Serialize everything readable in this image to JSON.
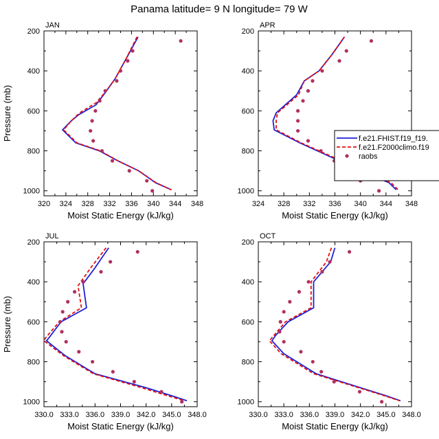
{
  "title": "Panama  latitude= 9 N longitude= 79 W",
  "colors": {
    "model1": "#1f1fd6",
    "model2": "#e01010",
    "raobs": "#b03060"
  },
  "legend": {
    "placement": "right of APR panel, overlapping figure edge",
    "entries": [
      "f.e21.FHIST.f19_f19.",
      "f.e21.F2000climo.f19",
      "raobs"
    ]
  },
  "chart_data": [
    {
      "type": "line",
      "panel_label": "JAN",
      "xlabel": "Moist Static Energy (kJ/kg)",
      "ylabel": "Pressure (mb)",
      "xlim": [
        320,
        348
      ],
      "xticks": [
        320,
        324,
        328,
        332,
        336,
        340,
        344,
        348
      ],
      "xdecimals": 0,
      "ylim": [
        200,
        1025
      ],
      "yticks": [
        200,
        400,
        600,
        800,
        1000
      ],
      "y_inverted": true,
      "pressure": [
        250,
        300,
        350,
        400,
        450,
        500,
        550,
        600,
        650,
        700,
        750,
        800,
        850,
        900,
        950,
        1000
      ],
      "series": [
        {
          "name": "f.e21.FHIST.f19_f19.",
          "style": "solid",
          "points": [
            [
              337.2,
              230
            ],
            [
              335.0,
              340
            ],
            [
              333.0,
              440
            ],
            [
              330.9,
              520
            ],
            [
              329.5,
              570
            ],
            [
              326.3,
              620
            ],
            [
              325.0,
              650
            ],
            [
              323.4,
              695
            ],
            [
              325.8,
              760
            ],
            [
              330.1,
              800
            ],
            [
              333.5,
              850
            ],
            [
              337.3,
              900
            ],
            [
              340.4,
              960
            ],
            [
              343.3,
              995
            ]
          ]
        },
        {
          "name": "f.e21.F2000climo.f19",
          "style": "dashed",
          "points": [
            [
              337.0,
              230
            ],
            [
              335.0,
              340
            ],
            [
              333.0,
              440
            ],
            [
              331.1,
              510
            ],
            [
              329.5,
              560
            ],
            [
              326.5,
              610
            ],
            [
              325.0,
              650
            ],
            [
              323.6,
              695
            ],
            [
              326.0,
              760
            ],
            [
              330.3,
              800
            ],
            [
              333.5,
              850
            ],
            [
              337.3,
              900
            ],
            [
              340.5,
              960
            ],
            [
              343.3,
              995
            ]
          ]
        },
        {
          "name": "raobs",
          "style": "markers",
          "points": [
            [
              345.0,
              250
            ],
            [
              336.2,
              300
            ],
            [
              335.3,
              350
            ],
            [
              334.0,
              400
            ],
            [
              333.3,
              450
            ],
            [
              331.2,
              500
            ],
            [
              330.2,
              550
            ],
            [
              329.4,
              600
            ],
            [
              328.8,
              650
            ],
            [
              328.5,
              700
            ],
            [
              329.0,
              750
            ],
            [
              330.6,
              800
            ],
            [
              332.5,
              850
            ],
            [
              335.6,
              900
            ],
            [
              338.8,
              950
            ],
            [
              339.8,
              1000
            ]
          ]
        }
      ]
    },
    {
      "type": "line",
      "panel_label": "APR",
      "xlabel": "Moist Static Energy (kJ/kg)",
      "ylabel": "Pressure (mb)",
      "xlim": [
        324,
        348
      ],
      "xticks": [
        324,
        328,
        332,
        336,
        340,
        344,
        348
      ],
      "xdecimals": 0,
      "ylim": [
        200,
        1025
      ],
      "yticks": [
        200,
        400,
        600,
        800,
        1000
      ],
      "y_inverted": true,
      "pressure": [
        250,
        300,
        350,
        400,
        450,
        500,
        550,
        600,
        650,
        700,
        750,
        800,
        850,
        900,
        950,
        1000
      ],
      "series": [
        {
          "name": "f.e21.FHIST.f19_f19.",
          "style": "solid",
          "points": [
            [
              337.5,
              230
            ],
            [
              335.5,
              320
            ],
            [
              333.5,
              400
            ],
            [
              331.2,
              450
            ],
            [
              330.0,
              520
            ],
            [
              326.8,
              610
            ],
            [
              326.3,
              650
            ],
            [
              326.5,
              695
            ],
            [
              330.5,
              760
            ],
            [
              336.0,
              840
            ],
            [
              341.5,
              920
            ],
            [
              344.5,
              960
            ],
            [
              345.6,
              995
            ]
          ]
        },
        {
          "name": "f.e21.F2000climo.f19",
          "style": "dashed",
          "points": [
            [
              337.5,
              230
            ],
            [
              335.5,
              320
            ],
            [
              333.5,
              400
            ],
            [
              331.2,
              450
            ],
            [
              330.3,
              520
            ],
            [
              327.0,
              610
            ],
            [
              326.8,
              650
            ],
            [
              326.8,
              695
            ],
            [
              330.7,
              760
            ],
            [
              336.3,
              840
            ],
            [
              341.8,
              920
            ],
            [
              344.8,
              960
            ],
            [
              345.9,
              995
            ]
          ]
        },
        {
          "name": "raobs",
          "style": "markers",
          "points": [
            [
              341.7,
              250
            ],
            [
              337.8,
              300
            ],
            [
              336.7,
              350
            ],
            [
              334.0,
              400
            ],
            [
              332.5,
              450
            ],
            [
              331.8,
              500
            ],
            [
              331.0,
              550
            ],
            [
              330.2,
              600
            ],
            [
              330.2,
              650
            ],
            [
              330.2,
              700
            ],
            [
              331.8,
              750
            ],
            [
              333.8,
              800
            ],
            [
              335.9,
              850
            ],
            [
              337.7,
              900
            ],
            [
              340.0,
              950
            ],
            [
              342.9,
              1000
            ]
          ]
        }
      ]
    },
    {
      "type": "line",
      "panel_label": "JUL",
      "xlabel": "Moist Static Energy (kJ/kg)",
      "ylabel": "Pressure (mb)",
      "xlim": [
        330,
        348
      ],
      "xticks": [
        330,
        333,
        336,
        339,
        342,
        345,
        348
      ],
      "xdecimals": 1,
      "ylim": [
        200,
        1025
      ],
      "yticks": [
        200,
        400,
        600,
        800,
        1000
      ],
      "y_inverted": true,
      "pressure": [
        250,
        300,
        350,
        400,
        450,
        500,
        550,
        600,
        650,
        700,
        750,
        800,
        850,
        900,
        950,
        1000
      ],
      "series": [
        {
          "name": "f.e21.FHIST.f19_f19.",
          "style": "solid",
          "points": [
            [
              337.6,
              230
            ],
            [
              336.0,
              330
            ],
            [
              334.6,
              410
            ],
            [
              335.0,
              530
            ],
            [
              332.0,
              600
            ],
            [
              330.6,
              680
            ],
            [
              330.3,
              695
            ],
            [
              332.5,
              770
            ],
            [
              336.0,
              860
            ],
            [
              342.0,
              930
            ],
            [
              345.0,
              970
            ],
            [
              346.8,
              995
            ]
          ]
        },
        {
          "name": "f.e21.F2000climo.f19",
          "style": "dashed",
          "points": [
            [
              337.3,
              230
            ],
            [
              335.5,
              330
            ],
            [
              334.0,
              420
            ],
            [
              334.4,
              530
            ],
            [
              331.8,
              600
            ],
            [
              330.2,
              680
            ],
            [
              330.0,
              695
            ],
            [
              332.3,
              770
            ],
            [
              335.8,
              860
            ],
            [
              341.5,
              930
            ],
            [
              344.5,
              970
            ],
            [
              346.5,
              995
            ]
          ]
        },
        {
          "name": "raobs",
          "style": "markers",
          "points": [
            [
              341.0,
              250
            ],
            [
              337.8,
              300
            ],
            [
              336.7,
              350
            ],
            [
              334.6,
              400
            ],
            [
              333.6,
              450
            ],
            [
              332.8,
              500
            ],
            [
              332.2,
              550
            ],
            [
              331.9,
              600
            ],
            [
              332.1,
              650
            ],
            [
              332.6,
              700
            ],
            [
              334.1,
              750
            ],
            [
              335.7,
              800
            ],
            [
              338.1,
              850
            ],
            [
              340.6,
              900
            ],
            [
              343.8,
              950
            ],
            [
              346.2,
              1000
            ]
          ]
        }
      ]
    },
    {
      "type": "line",
      "panel_label": "OCT",
      "xlabel": "Moist Static Energy (kJ/kg)",
      "ylabel": "Pressure (mb)",
      "xlim": [
        330,
        348
      ],
      "xticks": [
        330,
        333,
        336,
        339,
        342,
        345,
        348
      ],
      "xdecimals": 1,
      "ylim": [
        200,
        1025
      ],
      "yticks": [
        200,
        400,
        600,
        800,
        1000
      ],
      "y_inverted": true,
      "pressure": [
        250,
        300,
        350,
        400,
        450,
        500,
        550,
        600,
        650,
        700,
        750,
        800,
        850,
        900,
        950,
        1000
      ],
      "series": [
        {
          "name": "f.e21.FHIST.f19_f19.",
          "style": "solid",
          "points": [
            [
              339.0,
              230
            ],
            [
              338.5,
              300
            ],
            [
              336.5,
              400
            ],
            [
              336.5,
              530
            ],
            [
              333.5,
              600
            ],
            [
              332.0,
              670
            ],
            [
              331.6,
              695
            ],
            [
              333.0,
              760
            ],
            [
              336.8,
              860
            ],
            [
              342.0,
              930
            ],
            [
              345.0,
              970
            ],
            [
              346.7,
              995
            ]
          ]
        },
        {
          "name": "f.e21.F2000climo.f19",
          "style": "dashed",
          "points": [
            [
              338.6,
              230
            ],
            [
              338.0,
              300
            ],
            [
              336.2,
              400
            ],
            [
              336.2,
              530
            ],
            [
              333.2,
              600
            ],
            [
              331.8,
              670
            ],
            [
              331.3,
              695
            ],
            [
              332.7,
              760
            ],
            [
              336.5,
              860
            ],
            [
              341.8,
              930
            ],
            [
              344.8,
              970
            ],
            [
              346.6,
              995
            ]
          ]
        },
        {
          "name": "raobs",
          "style": "markers",
          "points": [
            [
              340.7,
              250
            ],
            [
              338.4,
              300
            ],
            [
              337.5,
              350
            ],
            [
              335.9,
              400
            ],
            [
              334.8,
              450
            ],
            [
              333.7,
              500
            ],
            [
              333.0,
              550
            ],
            [
              332.6,
              600
            ],
            [
              332.5,
              650
            ],
            [
              333.0,
              700
            ],
            [
              335.0,
              750
            ],
            [
              336.4,
              800
            ],
            [
              337.4,
              850
            ],
            [
              338.9,
              900
            ],
            [
              341.9,
              950
            ],
            [
              344.5,
              1000
            ]
          ]
        }
      ]
    }
  ]
}
